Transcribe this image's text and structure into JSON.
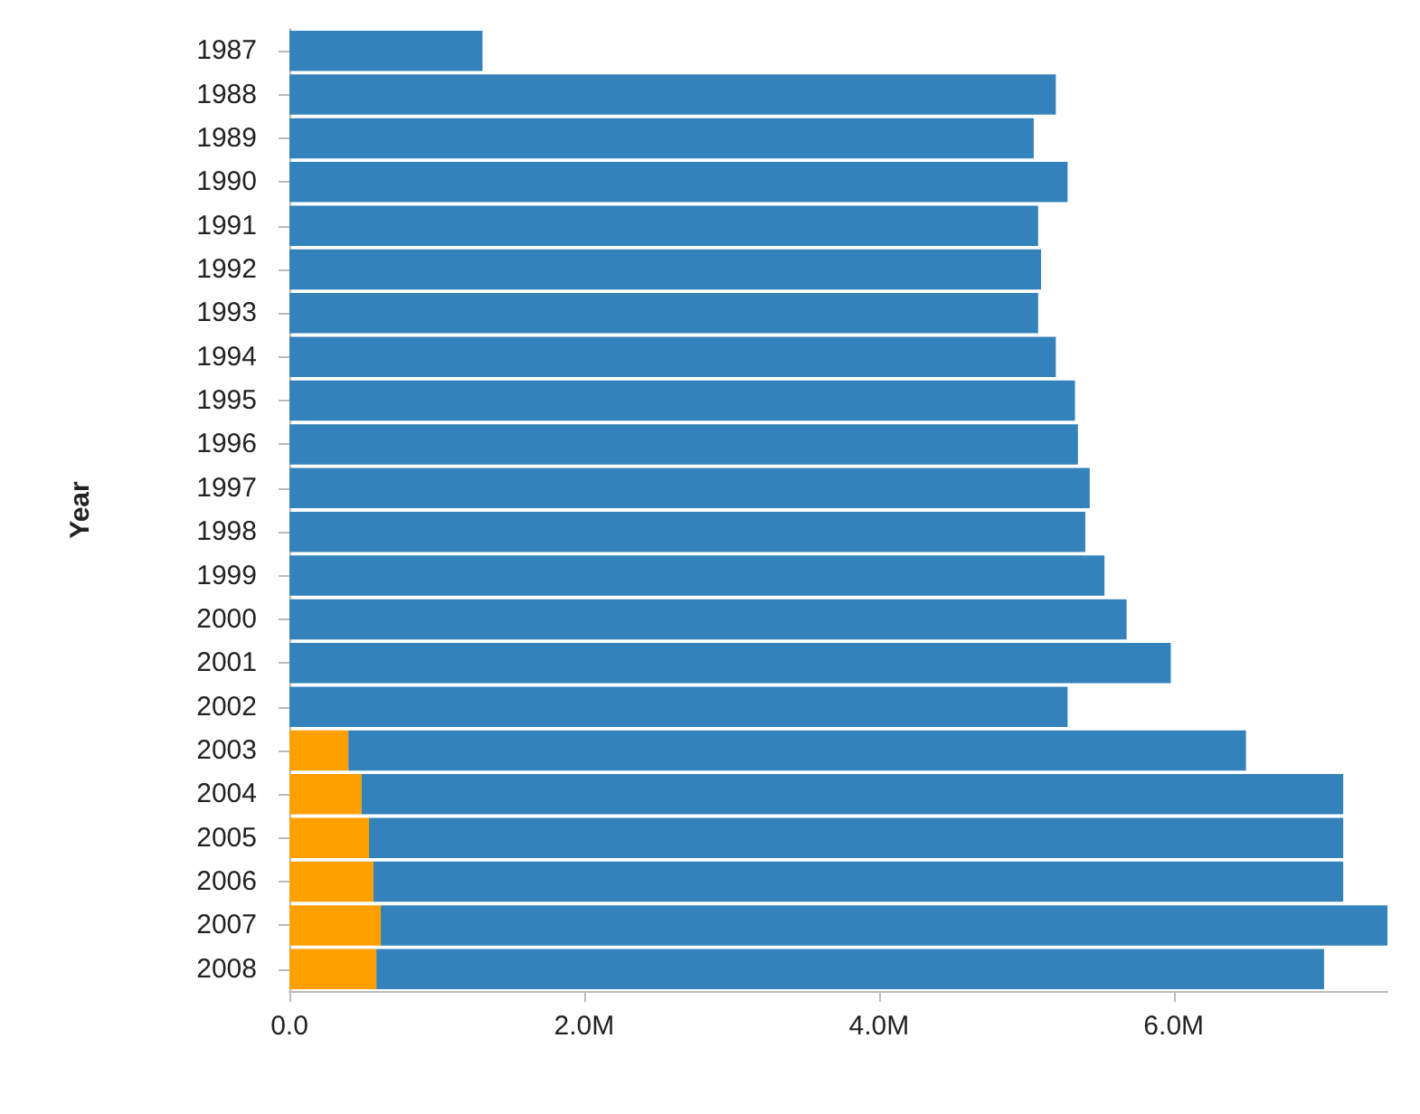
{
  "chart_data": {
    "type": "bar",
    "orientation": "horizontal",
    "stacked": true,
    "ylabel": "Year",
    "categories": [
      "1987",
      "1988",
      "1989",
      "1990",
      "1991",
      "1992",
      "1993",
      "1994",
      "1995",
      "1996",
      "1997",
      "1998",
      "1999",
      "2000",
      "2001",
      "2002",
      "2003",
      "2004",
      "2005",
      "2006",
      "2007",
      "2008"
    ],
    "series": [
      {
        "color": "#ff9f00",
        "values": [
          null,
          null,
          null,
          null,
          null,
          null,
          null,
          null,
          null,
          null,
          null,
          null,
          null,
          null,
          null,
          null,
          400000,
          490000,
          540000,
          570000,
          620000,
          590000
        ]
      },
      {
        "color": "#3482bb",
        "values": [
          1310000,
          5200000,
          5050000,
          5280000,
          5080000,
          5100000,
          5080000,
          5200000,
          5330000,
          5350000,
          5430000,
          5400000,
          5530000,
          5680000,
          5980000,
          5280000,
          6090000,
          6660000,
          6610000,
          6580000,
          6830000,
          6430000
        ]
      }
    ],
    "xlim": [
      0,
      7450000
    ],
    "xticks": [
      {
        "value": 0,
        "label": "0.0"
      },
      {
        "value": 2000000,
        "label": "2.0M"
      },
      {
        "value": 4000000,
        "label": "4.0M"
      },
      {
        "value": 6000000,
        "label": "6.0M"
      }
    ],
    "grid": false
  }
}
